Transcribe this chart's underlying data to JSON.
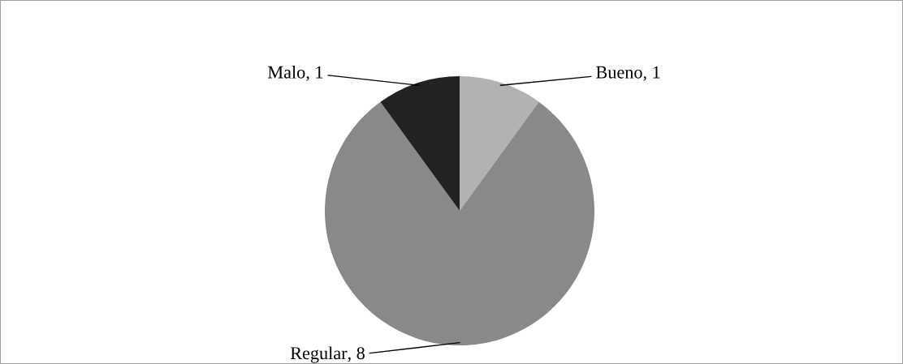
{
  "chart_data": {
    "type": "pie",
    "categories": [
      "Bueno",
      "Regular",
      "Malo"
    ],
    "values": [
      1,
      8,
      1
    ],
    "value_labels": [
      ", 1",
      ", 8",
      ", 1"
    ],
    "colors": [
      "#b2b2b2",
      "#898989",
      "#222222"
    ]
  }
}
